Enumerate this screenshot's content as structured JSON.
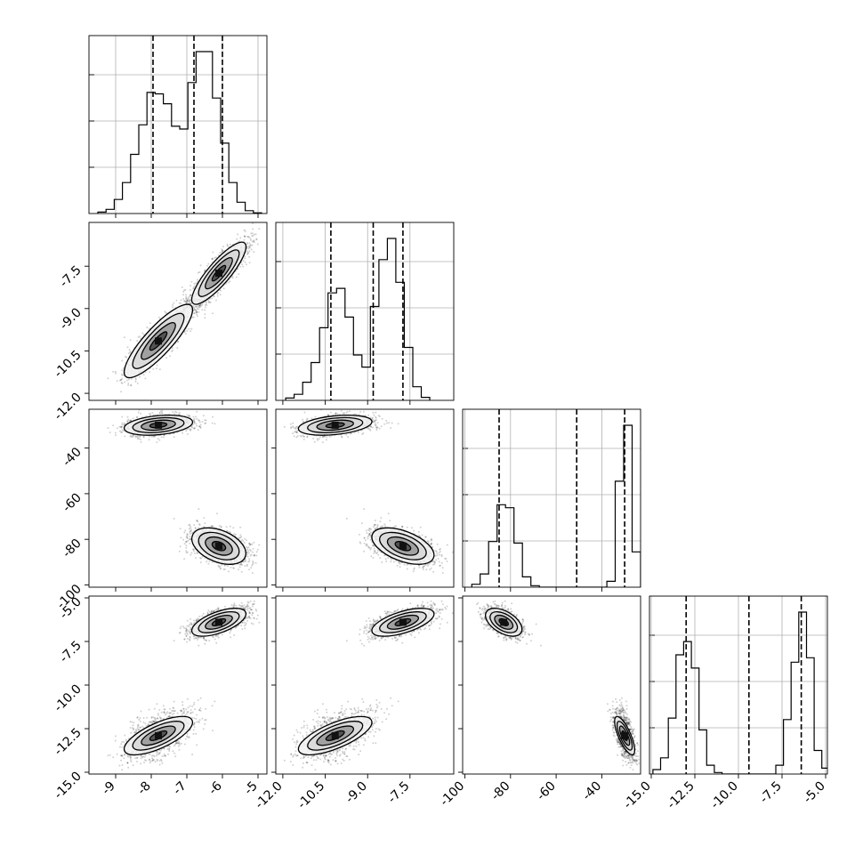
{
  "chart_data": {
    "type": "corner",
    "parameters": [
      {
        "range": [
          -9.75,
          -4.75
        ],
        "ticks": [
          "-9",
          "-8",
          "-7",
          "-6",
          "-5"
        ],
        "tick_values": [
          -9,
          -8,
          -7,
          -6,
          -5
        ],
        "quantiles": [
          -7.95,
          -6.8,
          -6.0
        ]
      },
      {
        "range": [
          -12.25,
          -5.95
        ],
        "ticks": [
          "-12.0",
          "-10.5",
          "-9.0",
          "-7.5"
        ],
        "tick_values": [
          -12.0,
          -10.5,
          -9.0,
          -7.5
        ],
        "quantiles": [
          -10.3,
          -8.8,
          -7.75
        ]
      },
      {
        "range": [
          -101,
          -23
        ],
        "ticks": [
          "-100",
          "-80",
          "-60",
          "-40"
        ],
        "tick_values": [
          -100,
          -80,
          -60,
          -40
        ],
        "quantiles": [
          -85,
          -51,
          -30
        ]
      },
      {
        "range": [
          -15.1,
          -4.9
        ],
        "ticks": [
          "-15.0",
          "-12.5",
          "-10.0",
          "-7.5",
          "-5.0"
        ],
        "tick_values": [
          -15.0,
          -12.5,
          -10.0,
          -7.5,
          -5.0
        ],
        "quantiles": [
          -13.0,
          -9.4,
          -6.4
        ]
      }
    ],
    "histograms": [
      {
        "edges_start": -9.5,
        "bin_width": 0.23,
        "counts": [
          10,
          30,
          100,
          220,
          420,
          630,
          860,
          850,
          780,
          620,
          600,
          930,
          1150,
          1150,
          820,
          500,
          220,
          80,
          20,
          5
        ]
      },
      {
        "edges_start": -11.9,
        "bin_width": 0.3,
        "counts": [
          15,
          40,
          120,
          250,
          480,
          710,
          740,
          550,
          300,
          220,
          620,
          930,
          1070,
          780,
          350,
          90,
          20
        ]
      },
      {
        "edges_start": -97,
        "bin_width": 3.7,
        "counts": [
          20,
          90,
          310,
          560,
          540,
          300,
          70,
          10,
          0,
          0,
          0,
          0,
          0,
          0,
          0,
          0,
          40,
          720,
          1100,
          240
        ]
      },
      {
        "edges_start": -14.9,
        "bin_width": 0.44,
        "counts": [
          30,
          110,
          380,
          810,
          900,
          720,
          300,
          60,
          10,
          0,
          0,
          0,
          0,
          0,
          0,
          0,
          60,
          370,
          760,
          1100,
          790,
          160,
          40
        ]
      }
    ],
    "modes": [
      {
        "weight": 0.45,
        "mean": [
          -7.8,
          -10.15,
          -30.0,
          -12.9
        ]
      },
      {
        "weight": 0.55,
        "mean": [
          -6.1,
          -7.75,
          -83.0,
          -6.4
        ]
      }
    ],
    "mode_spreads": [
      {
        "sd": [
          0.48,
          0.65,
          2.2,
          0.55
        ],
        "corr": [
          [
            1,
            0.85,
            0.3,
            0.7
          ],
          [
            0.85,
            1,
            0.35,
            0.7
          ],
          [
            0.3,
            0.35,
            1,
            -0.75
          ],
          [
            0.7,
            0.7,
            -0.75,
            1
          ]
        ]
      },
      {
        "sd": [
          0.38,
          0.55,
          4.0,
          0.4
        ],
        "corr": [
          [
            1,
            0.85,
            -0.4,
            0.6
          ],
          [
            0.85,
            1,
            -0.5,
            0.6
          ],
          [
            -0.4,
            -0.5,
            1,
            -0.5
          ],
          [
            0.6,
            0.6,
            -0.5,
            1
          ]
        ]
      }
    ],
    "hist_y_gridlines": 3
  }
}
